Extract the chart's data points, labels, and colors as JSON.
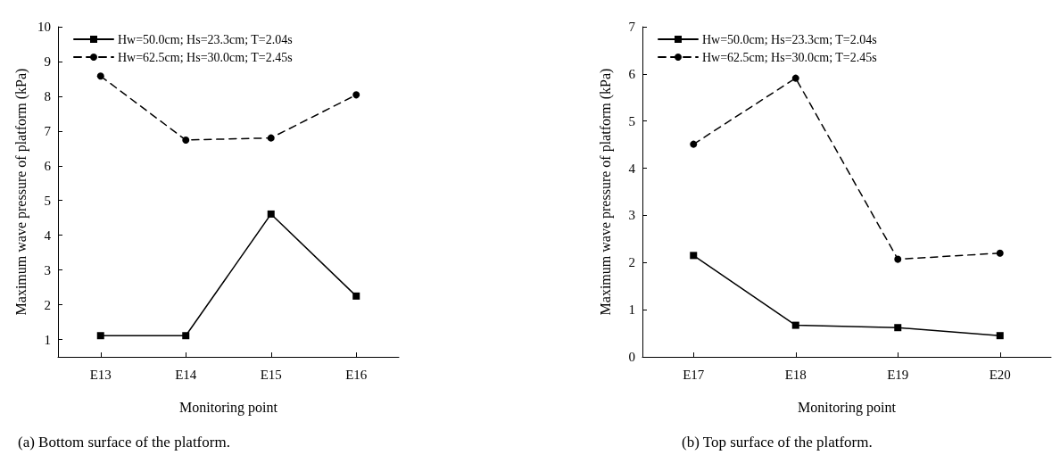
{
  "chart_data": [
    {
      "type": "line",
      "xlabel": "Monitoring point",
      "ylabel": "Maximum wave pressure of platform (kPa)",
      "categories": [
        "E13",
        "E14",
        "E15",
        "E16"
      ],
      "series": [
        {
          "name": "Hw=50.0cm; Hs=23.3cm; T=2.04s",
          "color": "#000000",
          "marker": "square",
          "line_style": "solid",
          "values": [
            1.11,
            1.11,
            4.61,
            2.25
          ]
        },
        {
          "name": "Hw=62.5cm; Hs=30.0cm; T=2.45s",
          "color": "#000000",
          "marker": "circle",
          "line_style": "dashed",
          "values": [
            8.58,
            6.74,
            6.8,
            8.04
          ]
        }
      ],
      "ylim": [
        0.5,
        10
      ],
      "yticks": [
        1,
        2,
        3,
        4,
        5,
        6,
        7,
        8,
        9,
        10
      ],
      "grid": false,
      "legend": "top left",
      "annotations": [
        "(a) Bottom surface of the platform."
      ]
    },
    {
      "type": "line",
      "xlabel": "Monitoring point",
      "ylabel": "Maximum wave pressure of platform (kPa)",
      "categories": [
        "E17",
        "E18",
        "E19",
        "E20"
      ],
      "series": [
        {
          "name": "Hw=50.0cm; Hs=23.3cm; T=2.04s",
          "color": "#000000",
          "marker": "square",
          "line_style": "solid",
          "values": [
            2.15,
            0.67,
            0.62,
            0.45
          ]
        },
        {
          "name": "Hw=62.5cm; Hs=30.0cm; T=2.45s",
          "color": "#000000",
          "marker": "circle",
          "line_style": "dashed",
          "values": [
            4.51,
            5.91,
            2.07,
            2.2
          ]
        }
      ],
      "ylim": [
        0,
        7
      ],
      "yticks": [
        0,
        1,
        2,
        3,
        4,
        5,
        6,
        7
      ],
      "grid": false,
      "legend": "top left",
      "annotations": [
        "(b) Top surface of the platform."
      ]
    }
  ]
}
